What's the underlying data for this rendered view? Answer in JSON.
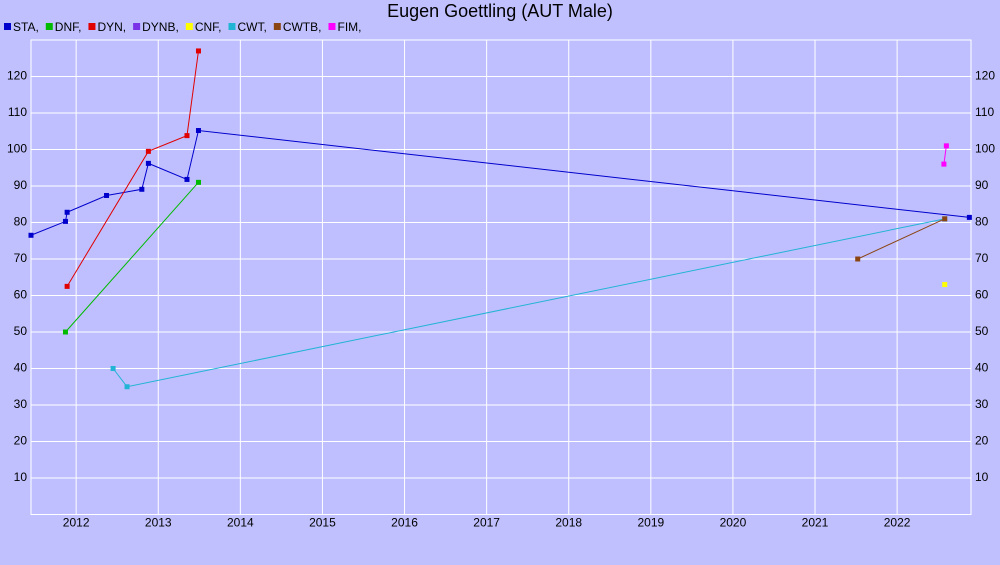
{
  "chart_data": {
    "type": "line",
    "title": "Eugen Goettling (AUT Male)",
    "xlim": [
      2011.45,
      2022.9
    ],
    "ylim": [
      0,
      130
    ],
    "xticks": [
      2012,
      2013,
      2014,
      2015,
      2016,
      2017,
      2018,
      2019,
      2020,
      2021,
      2022
    ],
    "yticks": [
      10,
      20,
      30,
      40,
      50,
      60,
      70,
      80,
      90,
      100,
      110,
      120
    ],
    "grid": true,
    "series": [
      {
        "name": "STA,",
        "color": "#0000cc",
        "x": [
          2011.45,
          2011.87,
          2011.89,
          2012.37,
          2012.8,
          2012.88,
          2013.35,
          2013.49,
          2022.88
        ],
        "values": [
          76.5,
          80.3,
          82.8,
          87.4,
          89.1,
          96.2,
          91.8,
          105.2,
          81.4
        ]
      },
      {
        "name": "DNF,",
        "color": "#00bb00",
        "x": [
          2011.87,
          2013.49
        ],
        "values": [
          50,
          91
        ]
      },
      {
        "name": "DYN,",
        "color": "#e00000",
        "x": [
          2011.89,
          2012.88,
          2013.35,
          2013.49
        ],
        "values": [
          62.5,
          99.5,
          103.8,
          127
        ]
      },
      {
        "name": "DYNB,",
        "color": "#7a33e6",
        "x": [],
        "values": []
      },
      {
        "name": "CNF,",
        "color": "#ffff00",
        "x": [
          2022.58
        ],
        "values": [
          63
        ]
      },
      {
        "name": "CWT,",
        "color": "#22b4d4",
        "x": [
          2012.45,
          2012.62,
          2022.58
        ],
        "values": [
          40,
          35,
          81
        ]
      },
      {
        "name": "CWTB,",
        "color": "#8b4513",
        "x": [
          2021.52,
          2022.58
        ],
        "values": [
          70,
          81
        ]
      },
      {
        "name": "FIM,",
        "color": "#ff00ff",
        "x": [
          2022.57,
          2022.6
        ],
        "values": [
          96,
          101
        ]
      }
    ]
  }
}
